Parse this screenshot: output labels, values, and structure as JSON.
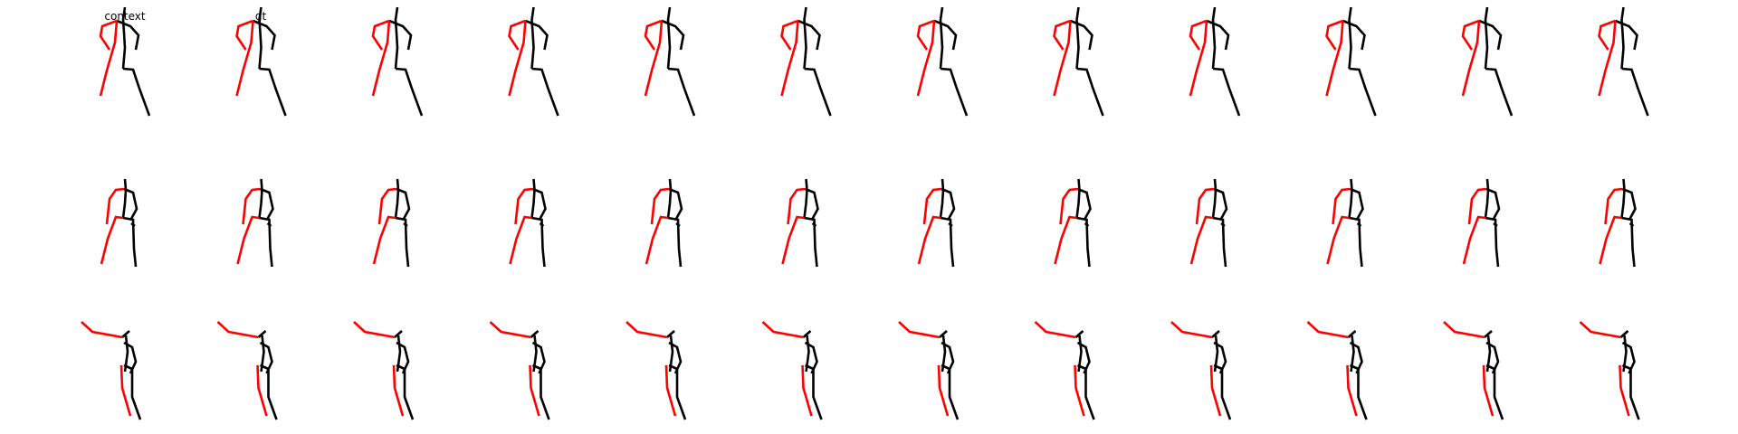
{
  "figure": {
    "column_titles": [
      "context",
      "gt"
    ],
    "left_color": "#ff0000",
    "right_color": "#000000",
    "rows": 3,
    "columns": 12
  }
}
